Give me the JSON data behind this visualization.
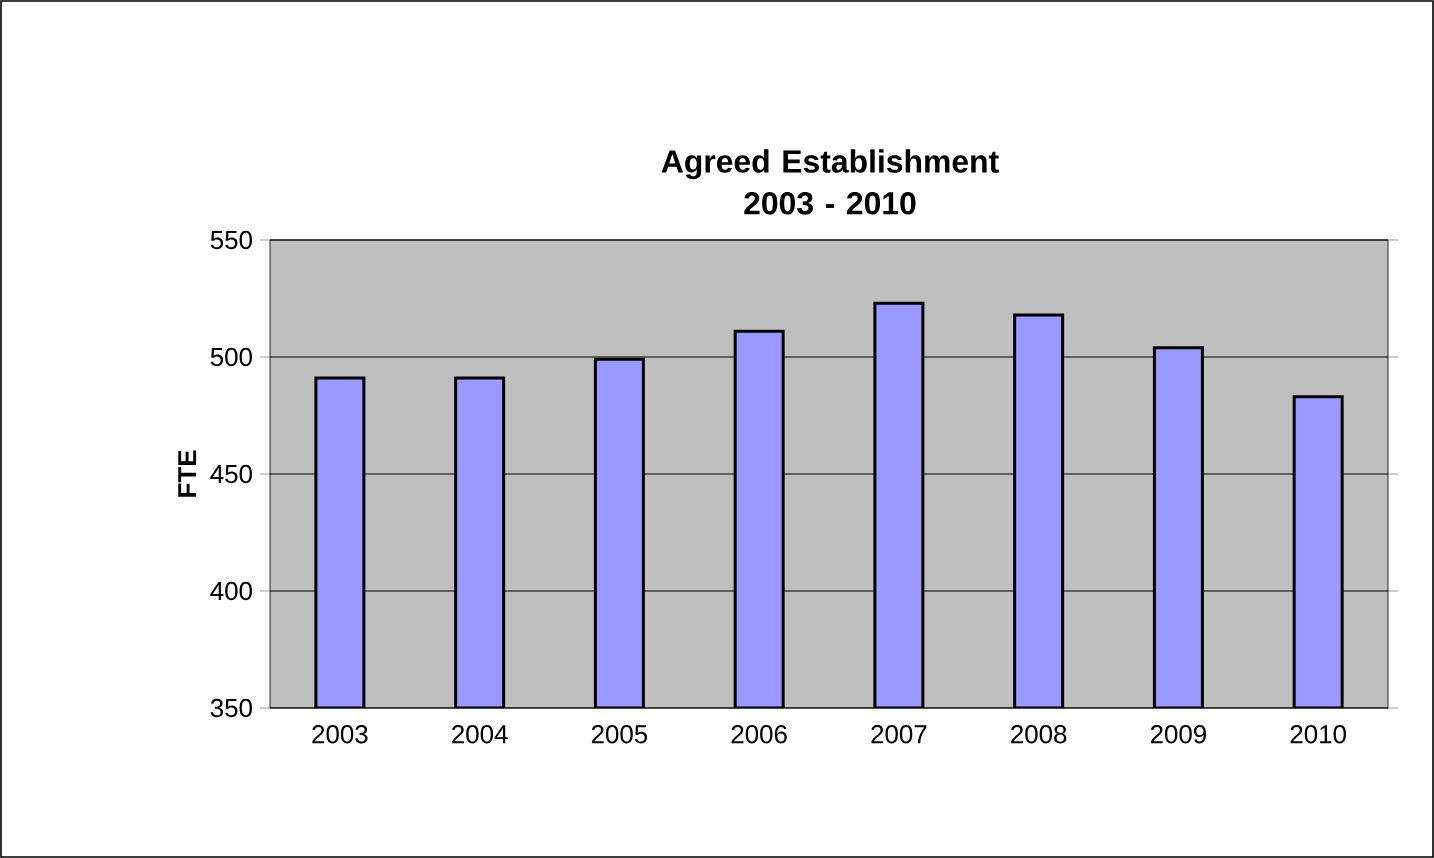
{
  "chart_data": {
    "type": "bar",
    "title": "Agreed Establishment\n2003 - 2010",
    "ylabel": "FTE",
    "categories": [
      "2003",
      "2004",
      "2005",
      "2006",
      "2007",
      "2008",
      "2009",
      "2010"
    ],
    "values": [
      491,
      491,
      499,
      511,
      523,
      518,
      504,
      483
    ],
    "color": "#9999ff",
    "ylim": [
      350,
      550
    ],
    "yticks": [
      350,
      400,
      450,
      500,
      550
    ],
    "grid": "y"
  }
}
